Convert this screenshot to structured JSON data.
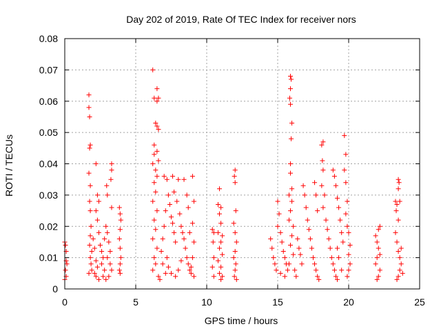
{
  "chart_data": {
    "type": "scatter",
    "title": "Day 202 of 2019, Rate Of TEC Index for receiver nors",
    "xlabel": "GPS time / hours",
    "ylabel": "ROTI / TECUs",
    "xlim": [
      0,
      25
    ],
    "ylim": [
      0,
      0.08
    ],
    "xticks": [
      0,
      5,
      10,
      15,
      20,
      25
    ],
    "xtick_labels": [
      "0",
      "5",
      "10",
      "15",
      "20",
      "25"
    ],
    "yticks": [
      0,
      0.01,
      0.02,
      0.03,
      0.04,
      0.05,
      0.06,
      0.07,
      0.08
    ],
    "ytick_labels": [
      "0",
      "0.01",
      "0.02",
      "0.03",
      "0.04",
      "0.05",
      "0.06",
      "0.07",
      "0.08"
    ],
    "grid": true,
    "marker": "+",
    "color": "#ff0000",
    "series": [
      {
        "name": "ROTI",
        "points": [
          [
            0.0,
            0.015
          ],
          [
            0.05,
            0.014
          ],
          [
            0.1,
            0.009
          ],
          [
            0.05,
            0.006
          ],
          [
            0.1,
            0.004
          ],
          [
            0.0,
            0.003
          ],
          [
            0.15,
            0.008
          ],
          [
            0.1,
            0.012
          ],
          [
            1.7,
            0.062
          ],
          [
            1.7,
            0.058
          ],
          [
            1.75,
            0.055
          ],
          [
            1.8,
            0.046
          ],
          [
            1.75,
            0.045
          ],
          [
            1.7,
            0.037
          ],
          [
            1.8,
            0.033
          ],
          [
            1.75,
            0.028
          ],
          [
            1.8,
            0.025
          ],
          [
            1.85,
            0.02
          ],
          [
            1.8,
            0.017
          ],
          [
            1.75,
            0.014
          ],
          [
            1.9,
            0.012
          ],
          [
            1.8,
            0.01
          ],
          [
            1.85,
            0.008
          ],
          [
            1.9,
            0.006
          ],
          [
            1.7,
            0.005
          ],
          [
            2.0,
            0.016
          ],
          [
            2.1,
            0.013
          ],
          [
            2.2,
            0.009
          ],
          [
            2.3,
            0.007
          ],
          [
            2.1,
            0.005
          ],
          [
            2.2,
            0.004
          ],
          [
            2.4,
            0.003
          ],
          [
            2.2,
            0.04
          ],
          [
            2.3,
            0.03
          ],
          [
            2.4,
            0.028
          ],
          [
            2.2,
            0.025
          ],
          [
            2.3,
            0.022
          ],
          [
            2.4,
            0.018
          ],
          [
            2.5,
            0.014
          ],
          [
            2.6,
            0.012
          ],
          [
            2.7,
            0.01
          ],
          [
            2.6,
            0.008
          ],
          [
            2.8,
            0.006
          ],
          [
            2.7,
            0.004
          ],
          [
            2.9,
            0.003
          ],
          [
            2.8,
            0.016
          ],
          [
            2.9,
            0.02
          ],
          [
            3.0,
            0.018
          ],
          [
            2.95,
            0.033
          ],
          [
            3.0,
            0.03
          ],
          [
            3.1,
            0.015
          ],
          [
            3.2,
            0.012
          ],
          [
            3.3,
            0.04
          ],
          [
            3.3,
            0.038
          ],
          [
            3.25,
            0.035
          ],
          [
            3.3,
            0.026
          ],
          [
            3.2,
            0.008
          ],
          [
            3.3,
            0.006
          ],
          [
            3.1,
            0.004
          ],
          [
            3.0,
            0.01
          ],
          [
            3.85,
            0.026
          ],
          [
            3.9,
            0.024
          ],
          [
            3.95,
            0.022
          ],
          [
            3.9,
            0.019
          ],
          [
            3.85,
            0.016
          ],
          [
            3.9,
            0.013
          ],
          [
            3.95,
            0.01
          ],
          [
            3.9,
            0.008
          ],
          [
            3.85,
            0.006
          ],
          [
            3.9,
            0.005
          ],
          [
            6.2,
            0.07
          ],
          [
            6.3,
            0.061
          ],
          [
            6.5,
            0.064
          ],
          [
            6.6,
            0.061
          ],
          [
            6.5,
            0.06
          ],
          [
            6.4,
            0.053
          ],
          [
            6.5,
            0.052
          ],
          [
            6.6,
            0.051
          ],
          [
            6.3,
            0.046
          ],
          [
            6.5,
            0.044
          ],
          [
            6.6,
            0.041
          ],
          [
            6.3,
            0.043
          ],
          [
            6.2,
            0.04
          ],
          [
            6.4,
            0.038
          ],
          [
            6.5,
            0.036
          ],
          [
            6.3,
            0.034
          ],
          [
            6.4,
            0.031
          ],
          [
            6.2,
            0.028
          ],
          [
            6.5,
            0.025
          ],
          [
            6.3,
            0.022
          ],
          [
            6.4,
            0.019
          ],
          [
            6.2,
            0.016
          ],
          [
            6.5,
            0.013
          ],
          [
            6.3,
            0.01
          ],
          [
            6.4,
            0.008
          ],
          [
            6.2,
            0.006
          ],
          [
            6.6,
            0.004
          ],
          [
            6.7,
            0.003
          ],
          [
            6.8,
            0.012
          ],
          [
            6.9,
            0.016
          ],
          [
            7.0,
            0.02
          ],
          [
            7.1,
            0.025
          ],
          [
            7.0,
            0.036
          ],
          [
            7.2,
            0.035
          ],
          [
            7.3,
            0.03
          ],
          [
            7.4,
            0.027
          ],
          [
            7.5,
            0.023
          ],
          [
            7.6,
            0.021
          ],
          [
            7.7,
            0.018
          ],
          [
            7.8,
            0.015
          ],
          [
            7.6,
            0.036
          ],
          [
            7.7,
            0.031
          ],
          [
            7.9,
            0.028
          ],
          [
            8.0,
            0.035
          ],
          [
            8.1,
            0.024
          ],
          [
            8.2,
            0.02
          ],
          [
            8.3,
            0.018
          ],
          [
            8.4,
            0.016
          ],
          [
            8.5,
            0.013
          ],
          [
            8.6,
            0.01
          ],
          [
            8.7,
            0.008
          ],
          [
            8.8,
            0.006
          ],
          [
            8.9,
            0.005
          ],
          [
            8.4,
            0.035
          ],
          [
            8.6,
            0.03
          ],
          [
            8.7,
            0.026
          ],
          [
            8.8,
            0.018
          ],
          [
            9.0,
            0.036
          ],
          [
            9.1,
            0.028
          ],
          [
            9.0,
            0.021
          ],
          [
            9.1,
            0.015
          ],
          [
            9.0,
            0.01
          ],
          [
            8.9,
            0.007
          ],
          [
            9.1,
            0.004
          ],
          [
            7.2,
            0.01
          ],
          [
            7.3,
            0.007
          ],
          [
            7.5,
            0.005
          ],
          [
            7.8,
            0.004
          ],
          [
            8.0,
            0.006
          ],
          [
            8.2,
            0.009
          ],
          [
            6.9,
            0.008
          ],
          [
            7.1,
            0.005
          ],
          [
            10.4,
            0.019
          ],
          [
            10.5,
            0.018
          ],
          [
            10.45,
            0.015
          ],
          [
            10.5,
            0.01
          ],
          [
            10.4,
            0.007
          ],
          [
            10.5,
            0.004
          ],
          [
            10.9,
            0.032
          ],
          [
            10.8,
            0.027
          ],
          [
            11.0,
            0.026
          ],
          [
            10.9,
            0.024
          ],
          [
            11.0,
            0.021
          ],
          [
            10.8,
            0.018
          ],
          [
            11.1,
            0.017
          ],
          [
            11.0,
            0.015
          ],
          [
            10.9,
            0.013
          ],
          [
            11.1,
            0.011
          ],
          [
            10.8,
            0.009
          ],
          [
            11.0,
            0.007
          ],
          [
            10.9,
            0.005
          ],
          [
            11.1,
            0.004
          ],
          [
            11.0,
            0.003
          ],
          [
            12.0,
            0.038
          ],
          [
            11.95,
            0.036
          ],
          [
            12.0,
            0.034
          ],
          [
            12.05,
            0.025
          ],
          [
            11.9,
            0.021
          ],
          [
            12.0,
            0.018
          ],
          [
            12.1,
            0.015
          ],
          [
            12.0,
            0.012
          ],
          [
            11.9,
            0.01
          ],
          [
            12.05,
            0.008
          ],
          [
            12.0,
            0.006
          ],
          [
            11.95,
            0.004
          ],
          [
            12.1,
            0.003
          ],
          [
            14.5,
            0.016
          ],
          [
            14.6,
            0.013
          ],
          [
            14.7,
            0.01
          ],
          [
            14.8,
            0.008
          ],
          [
            14.9,
            0.006
          ],
          [
            15.0,
            0.028
          ],
          [
            15.1,
            0.024
          ],
          [
            15.0,
            0.02
          ],
          [
            15.2,
            0.018
          ],
          [
            15.3,
            0.015
          ],
          [
            15.4,
            0.012
          ],
          [
            15.5,
            0.01
          ],
          [
            15.6,
            0.008
          ],
          [
            15.7,
            0.006
          ],
          [
            15.5,
            0.004
          ],
          [
            15.2,
            0.005
          ],
          [
            15.9,
            0.068
          ],
          [
            15.95,
            0.067
          ],
          [
            15.9,
            0.064
          ],
          [
            15.85,
            0.061
          ],
          [
            15.9,
            0.059
          ],
          [
            16.0,
            0.053
          ],
          [
            15.95,
            0.048
          ],
          [
            15.9,
            0.04
          ],
          [
            15.9,
            0.037
          ],
          [
            16.0,
            0.032
          ],
          [
            15.8,
            0.03
          ],
          [
            16.0,
            0.028
          ],
          [
            15.9,
            0.025
          ],
          [
            15.8,
            0.022
          ],
          [
            16.1,
            0.02
          ],
          [
            16.0,
            0.017
          ],
          [
            15.9,
            0.014
          ],
          [
            16.1,
            0.011
          ],
          [
            15.8,
            0.008
          ],
          [
            16.2,
            0.006
          ],
          [
            16.3,
            0.004
          ],
          [
            16.4,
            0.016
          ],
          [
            16.5,
            0.013
          ],
          [
            16.6,
            0.011
          ],
          [
            16.7,
            0.008
          ],
          [
            16.8,
            0.033
          ],
          [
            16.9,
            0.03
          ],
          [
            17.0,
            0.026
          ],
          [
            17.1,
            0.022
          ],
          [
            17.2,
            0.019
          ],
          [
            17.3,
            0.016
          ],
          [
            17.4,
            0.013
          ],
          [
            17.5,
            0.01
          ],
          [
            17.6,
            0.008
          ],
          [
            17.7,
            0.006
          ],
          [
            17.8,
            0.004
          ],
          [
            17.9,
            0.003
          ],
          [
            17.6,
            0.034
          ],
          [
            17.7,
            0.03
          ],
          [
            17.8,
            0.025
          ],
          [
            18.1,
            0.046
          ],
          [
            18.2,
            0.047
          ],
          [
            18.15,
            0.041
          ],
          [
            18.2,
            0.038
          ],
          [
            18.1,
            0.033
          ],
          [
            18.3,
            0.03
          ],
          [
            18.2,
            0.026
          ],
          [
            18.4,
            0.022
          ],
          [
            18.5,
            0.019
          ],
          [
            18.6,
            0.016
          ],
          [
            18.7,
            0.013
          ],
          [
            18.8,
            0.01
          ],
          [
            18.9,
            0.008
          ],
          [
            19.0,
            0.006
          ],
          [
            19.1,
            0.004
          ],
          [
            19.2,
            0.003
          ],
          [
            18.9,
            0.038
          ],
          [
            19.0,
            0.036
          ],
          [
            19.1,
            0.033
          ],
          [
            19.2,
            0.029
          ],
          [
            19.3,
            0.026
          ],
          [
            19.4,
            0.022
          ],
          [
            19.5,
            0.018
          ],
          [
            19.6,
            0.015
          ],
          [
            19.7,
            0.049
          ],
          [
            19.8,
            0.043
          ],
          [
            19.7,
            0.038
          ],
          [
            19.8,
            0.034
          ],
          [
            19.9,
            0.028
          ],
          [
            19.8,
            0.024
          ],
          [
            19.9,
            0.02
          ],
          [
            20.0,
            0.018
          ],
          [
            20.1,
            0.014
          ],
          [
            20.0,
            0.011
          ],
          [
            20.1,
            0.008
          ],
          [
            20.0,
            0.006
          ],
          [
            19.9,
            0.004
          ],
          [
            19.5,
            0.006
          ],
          [
            19.3,
            0.01
          ],
          [
            19.2,
            0.013
          ],
          [
            21.9,
            0.017
          ],
          [
            22.0,
            0.015
          ],
          [
            22.1,
            0.013
          ],
          [
            22.2,
            0.02
          ],
          [
            22.1,
            0.019
          ],
          [
            22.0,
            0.01
          ],
          [
            21.9,
            0.008
          ],
          [
            22.2,
            0.006
          ],
          [
            22.1,
            0.004
          ],
          [
            22.0,
            0.003
          ],
          [
            22.2,
            0.011
          ],
          [
            23.3,
            0.028
          ],
          [
            23.4,
            0.027
          ],
          [
            23.35,
            0.025
          ],
          [
            23.5,
            0.035
          ],
          [
            23.55,
            0.034
          ],
          [
            23.5,
            0.032
          ],
          [
            23.6,
            0.028
          ],
          [
            23.5,
            0.022
          ],
          [
            23.3,
            0.018
          ],
          [
            23.4,
            0.015
          ],
          [
            23.5,
            0.012
          ],
          [
            23.6,
            0.01
          ],
          [
            23.7,
            0.008
          ],
          [
            23.6,
            0.006
          ],
          [
            23.8,
            0.005
          ],
          [
            23.5,
            0.004
          ],
          [
            23.4,
            0.003
          ],
          [
            23.7,
            0.013
          ]
        ]
      }
    ]
  }
}
